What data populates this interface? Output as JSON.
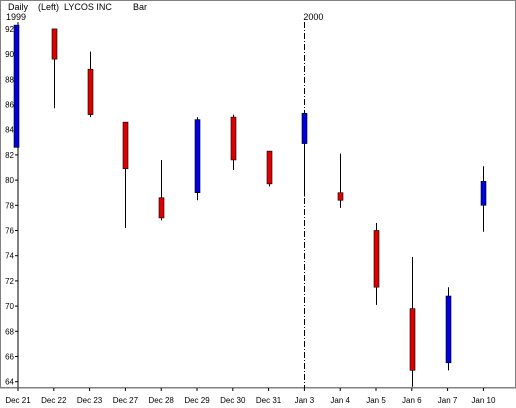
{
  "header": {
    "period": "Daily",
    "axis_side": "(Left)",
    "symbol": "LYCOS INC",
    "style": "Bar"
  },
  "colors": {
    "up": "#0000dd",
    "down": "#dd0000",
    "wick": "#000000",
    "frame": "#808080"
  },
  "chart_data": {
    "type": "candlestick",
    "title": "",
    "xlabel": "",
    "ylabel": "",
    "ylim": [
      63.5,
      93.5
    ],
    "yticks": [
      64,
      66,
      68,
      70,
      72,
      74,
      76,
      78,
      80,
      82,
      84,
      86,
      88,
      90,
      92
    ],
    "year_markers": [
      {
        "label": "1999",
        "index": 0
      },
      {
        "label": "2000",
        "index": 8
      }
    ],
    "year_separator_after": 7,
    "categories": [
      "Dec 21",
      "Dec 22",
      "Dec 23",
      "Dec 27",
      "Dec 28",
      "Dec 29",
      "Dec 30",
      "Dec 31",
      "Jan 3",
      "Jan 4",
      "Jan 5",
      "Jan 6",
      "Jan 7",
      "Jan 10"
    ],
    "series": [
      {
        "open": [
          82.6,
          92.0,
          88.8,
          84.6,
          78.6,
          79.0,
          85.0,
          82.3,
          82.9,
          79.0,
          76.0,
          69.8,
          65.5,
          78.0
        ],
        "high": [
          92.3,
          92.0,
          90.2,
          84.6,
          81.6,
          85.0,
          85.2,
          82.3,
          85.3,
          82.1,
          76.6,
          73.9,
          71.5,
          81.1
        ],
        "low": [
          82.6,
          85.7,
          85.0,
          76.2,
          76.8,
          78.4,
          80.8,
          79.5,
          78.7,
          77.8,
          70.1,
          63.6,
          64.9,
          75.9
        ],
        "close": [
          92.3,
          89.6,
          85.2,
          80.9,
          77.0,
          84.8,
          81.6,
          79.7,
          85.3,
          78.4,
          71.5,
          64.9,
          70.8,
          79.9
        ]
      }
    ]
  }
}
